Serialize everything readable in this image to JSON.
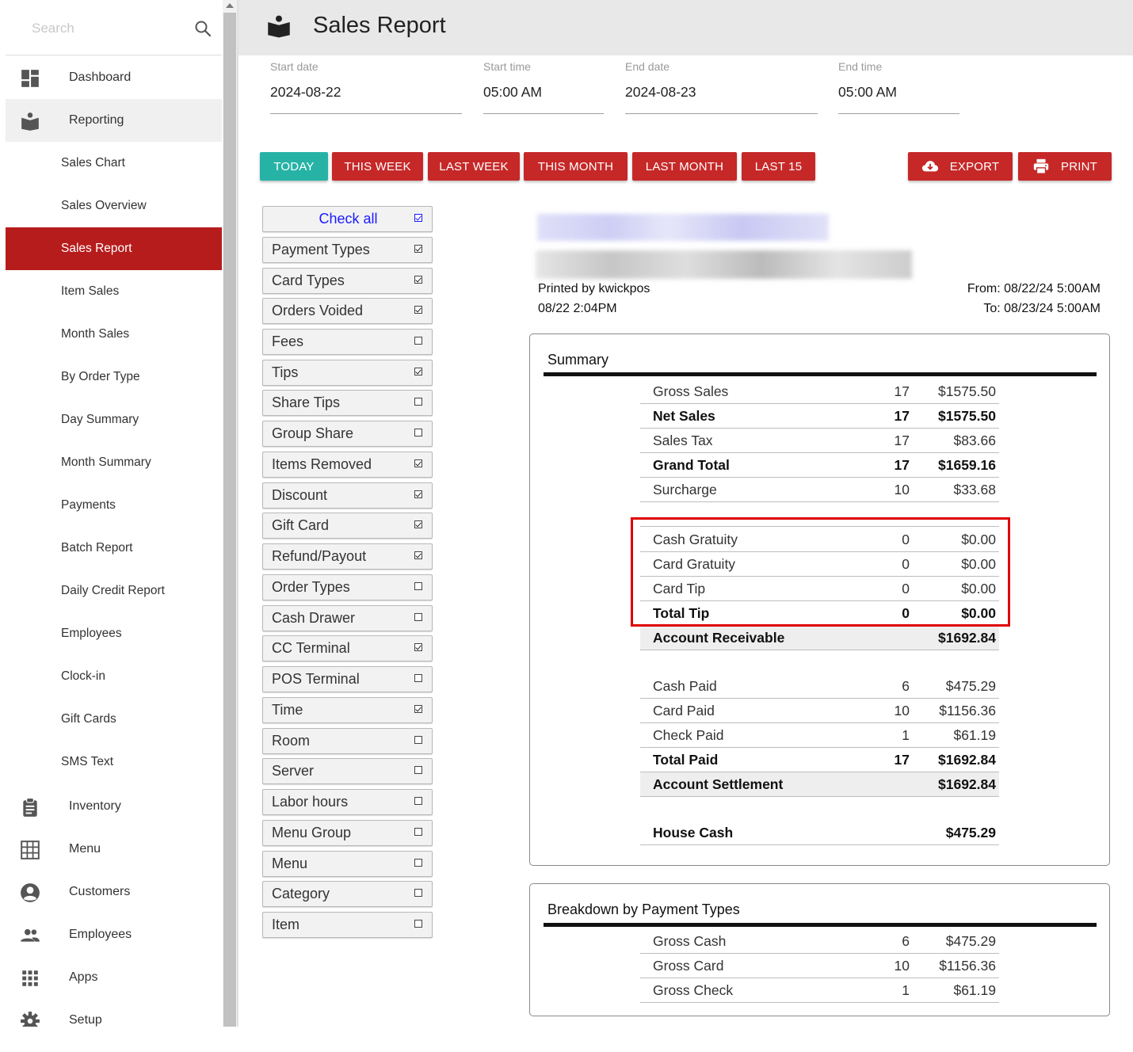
{
  "sidebar": {
    "search_placeholder": "Search",
    "items": [
      {
        "label": "Dashboard",
        "icon": "dashboard-icon"
      },
      {
        "label": "Reporting",
        "icon": "reporting-icon"
      },
      {
        "label": "Sales Chart"
      },
      {
        "label": "Sales Overview"
      },
      {
        "label": "Sales Report"
      },
      {
        "label": "Item Sales"
      },
      {
        "label": "Month Sales"
      },
      {
        "label": "By Order Type"
      },
      {
        "label": "Day Summary"
      },
      {
        "label": "Month Summary"
      },
      {
        "label": "Payments"
      },
      {
        "label": "Batch Report"
      },
      {
        "label": "Daily Credit Report"
      },
      {
        "label": "Employees"
      },
      {
        "label": "Clock-in"
      },
      {
        "label": "Gift Cards"
      },
      {
        "label": "SMS Text"
      },
      {
        "label": "Inventory",
        "icon": "clipboard-icon"
      },
      {
        "label": "Menu",
        "icon": "grid-icon"
      },
      {
        "label": "Customers",
        "icon": "account-circle-icon"
      },
      {
        "label": "Employees",
        "icon": "people-icon"
      },
      {
        "label": "Apps",
        "icon": "apps-icon"
      },
      {
        "label": "Setup",
        "icon": "gear-icon"
      }
    ]
  },
  "header": {
    "title": "Sales Report"
  },
  "dates": {
    "start_date_label": "Start date",
    "start_date": "2024-08-22",
    "start_time_label": "Start time",
    "start_time": "05:00 AM",
    "end_date_label": "End date",
    "end_date": "2024-08-23",
    "end_time_label": "End time",
    "end_time": "05:00 AM"
  },
  "ranges": {
    "today": "TODAY",
    "this_week": "THIS WEEK",
    "last_week": "LAST WEEK",
    "this_month": "THIS MONTH",
    "last_month": "LAST MONTH",
    "last_15": "LAST 15",
    "selected": "TODAY"
  },
  "actions": {
    "export": "EXPORT",
    "print": "PRINT"
  },
  "filters": [
    {
      "label": "Check all",
      "checked": true
    },
    {
      "label": "Payment Types",
      "checked": true
    },
    {
      "label": "Card Types",
      "checked": true
    },
    {
      "label": "Orders Voided",
      "checked": true
    },
    {
      "label": "Fees",
      "checked": false
    },
    {
      "label": "Tips",
      "checked": true
    },
    {
      "label": "Share Tips",
      "checked": false
    },
    {
      "label": "Group Share",
      "checked": false
    },
    {
      "label": "Items Removed",
      "checked": true
    },
    {
      "label": "Discount",
      "checked": true
    },
    {
      "label": "Gift Card",
      "checked": true
    },
    {
      "label": "Refund/Payout",
      "checked": true
    },
    {
      "label": "Order Types",
      "checked": false
    },
    {
      "label": "Cash Drawer",
      "checked": false
    },
    {
      "label": "CC Terminal",
      "checked": true
    },
    {
      "label": "POS Terminal",
      "checked": false
    },
    {
      "label": "Time",
      "checked": true
    },
    {
      "label": "Room",
      "checked": false
    },
    {
      "label": "Server",
      "checked": false
    },
    {
      "label": "Labor hours",
      "checked": false
    },
    {
      "label": "Menu Group",
      "checked": false
    },
    {
      "label": "Menu",
      "checked": false
    },
    {
      "label": "Category",
      "checked": false
    },
    {
      "label": "Item",
      "checked": false
    }
  ],
  "report": {
    "printed_by": "Printed by kwickpos",
    "printed_at": "08/22 2:04PM",
    "from": "From: 08/22/24 5:00AM",
    "to": "To: 08/23/24 5:00AM"
  },
  "summary": {
    "title": "Summary",
    "rows": [
      {
        "label": "Gross Sales",
        "count": "17",
        "value": "$1575.50",
        "bold": false
      },
      {
        "label": "Net Sales",
        "count": "17",
        "value": "$1575.50",
        "bold": true
      },
      {
        "label": "Sales Tax",
        "count": "17",
        "value": "$83.66",
        "bold": false
      },
      {
        "label": "Grand Total",
        "count": "17",
        "value": "$1659.16",
        "bold": true
      },
      {
        "label": "Surcharge",
        "count": "10",
        "value": "$33.68",
        "bold": false
      },
      {
        "label": "Cash Gratuity",
        "count": "0",
        "value": "$0.00",
        "bold": false
      },
      {
        "label": "Card Gratuity",
        "count": "0",
        "value": "$0.00",
        "bold": false
      },
      {
        "label": "Card Tip",
        "count": "0",
        "value": "$0.00",
        "bold": false
      },
      {
        "label": "Total Tip",
        "count": "0",
        "value": "$0.00",
        "bold": true
      },
      {
        "label": "Account Receivable",
        "count": "",
        "value": "$1692.84",
        "bold": true
      },
      {
        "label": "Cash Paid",
        "count": "6",
        "value": "$475.29",
        "bold": false
      },
      {
        "label": "Card Paid",
        "count": "10",
        "value": "$1156.36",
        "bold": false
      },
      {
        "label": "Check Paid",
        "count": "1",
        "value": "$61.19",
        "bold": false
      },
      {
        "label": "Total Paid",
        "count": "17",
        "value": "$1692.84",
        "bold": true
      },
      {
        "label": "Account Settlement",
        "count": "",
        "value": "$1692.84",
        "bold": true
      },
      {
        "label": "House Cash",
        "count": "",
        "value": "$475.29",
        "bold": true
      }
    ]
  },
  "breakdown": {
    "title": "Breakdown by Payment Types",
    "rows": [
      {
        "label": "Gross Cash",
        "count": "6",
        "value": "$475.29"
      },
      {
        "label": "Gross Card",
        "count": "10",
        "value": "$1156.36"
      },
      {
        "label": "Gross Check",
        "count": "1",
        "value": "$61.19"
      }
    ]
  },
  "colors": {
    "accent_red": "#c62828",
    "active_red": "#b71c1c",
    "teal": "#26b3a6",
    "highlight": "#e00000"
  }
}
